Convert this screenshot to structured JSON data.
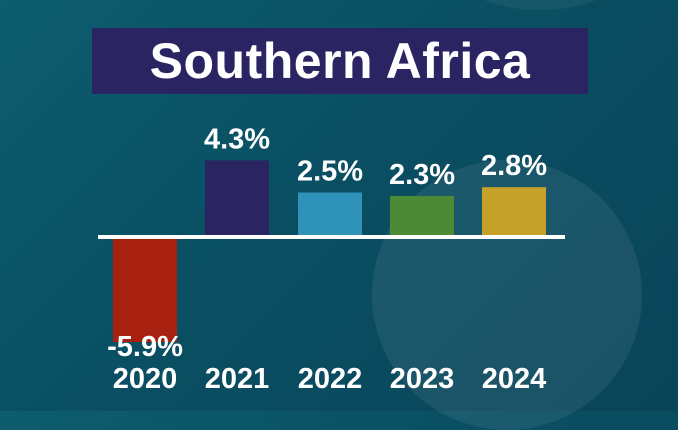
{
  "chart_data": {
    "type": "bar",
    "title": "Southern Africa",
    "categories": [
      "2020",
      "2021",
      "2022",
      "2023",
      "2024"
    ],
    "values": [
      -5.9,
      4.3,
      2.5,
      2.3,
      2.8
    ],
    "value_labels": [
      "-5.9%",
      "4.3%",
      "2.5%",
      "2.3%",
      "2.8%"
    ],
    "bar_colors": [
      "#a8200f",
      "#2a2461",
      "#2e92b9",
      "#4c8a35",
      "#c6a12a"
    ],
    "xlabel": "",
    "ylabel": "",
    "grid": false,
    "legend": "none"
  },
  "colors": {
    "background": "#0b566a",
    "title_box": "#2b2462",
    "baseline": "#ffffff",
    "text": "#ffffff"
  }
}
